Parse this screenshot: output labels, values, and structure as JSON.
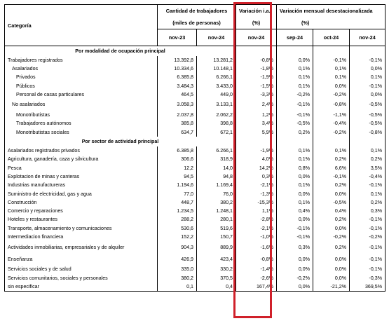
{
  "header": {
    "category_label": "Categoría",
    "group1_title": "Cantidad de trabajadores",
    "group1_sub": "(miles de personas)",
    "group2_title": "Variación i.a.",
    "group2_sub": "(%)",
    "group3_title": "Variación mensual desestacionalizada",
    "group3_sub": "(%)",
    "col1": "nov-23",
    "col2": "nov-24",
    "col3": "nov-24",
    "col4": "sep-24",
    "col5": "oct-24",
    "col6": "nov-24"
  },
  "rows": [
    {
      "type": "section",
      "label": "Por modalidad de ocupación principal"
    },
    {
      "type": "data",
      "label": "Trabajadores registrados",
      "indent": 0,
      "values": [
        "13.392,8",
        "13.281,2",
        "-0,8%",
        "0,0%",
        "-0,1%",
        "-0,1%"
      ]
    },
    {
      "type": "data",
      "label": "Asalariados",
      "indent": 1,
      "values": [
        "10.334,6",
        "10.148,1",
        "-1,8%",
        "0,1%",
        "0,1%",
        "0,0%"
      ]
    },
    {
      "type": "data",
      "label": "Privados",
      "indent": 2,
      "values": [
        "6.385,8",
        "6.266,1",
        "-1,9%",
        "0,1%",
        "0,1%",
        "0,1%"
      ]
    },
    {
      "type": "data",
      "label": "Públicos",
      "indent": 2,
      "values": [
        "3.484,3",
        "3.433,0",
        "-1,5%",
        "0,1%",
        "0,0%",
        "-0,1%"
      ]
    },
    {
      "type": "data",
      "label": "Personal de casas particulares",
      "indent": 2,
      "values": [
        "464,5",
        "449,0",
        "-3,3%",
        "-0,2%",
        "-0,2%",
        "0,0%"
      ]
    },
    {
      "type": "data",
      "label": "No asalariados",
      "indent": 1,
      "values": [
        "3.058,3",
        "3.133,1",
        "2,4%",
        "-0,1%",
        "-0,8%",
        "-0,5%"
      ],
      "tall": true
    },
    {
      "type": "data",
      "label": "Monotributistas",
      "indent": 2,
      "values": [
        "2.037,8",
        "2.062,2",
        "1,2%",
        "-0,1%",
        "-1,1%",
        "-0,5%"
      ]
    },
    {
      "type": "data",
      "label": "Trabajadores autónomos",
      "indent": 2,
      "values": [
        "385,8",
        "398,8",
        "3,4%",
        "-0,5%",
        "-0,4%",
        "-0,5%"
      ]
    },
    {
      "type": "data",
      "label": "Monotributistas sociales",
      "indent": 2,
      "values": [
        "634,7",
        "672,1",
        "5,9%",
        "0,2%",
        "-0,2%",
        "-0,8%"
      ]
    },
    {
      "type": "section",
      "label": "Por sector de actividad principal"
    },
    {
      "type": "data",
      "label": "Asalariados registrados privados",
      "indent": 0,
      "values": [
        "6.385,8",
        "6.266,1",
        "-1,9%",
        "0,1%",
        "0,1%",
        "0,1%"
      ]
    },
    {
      "type": "data",
      "label": "Agricultura, ganadería, caza y silvicultura",
      "indent": 0,
      "values": [
        "306,6",
        "318,9",
        "4,0%",
        "0,1%",
        "0,2%",
        "0,2%"
      ]
    },
    {
      "type": "data",
      "label": "Pesca",
      "indent": 0,
      "values": [
        "12,2",
        "14,0",
        "14,2%",
        "0,8%",
        "6,6%",
        "3,5%"
      ]
    },
    {
      "type": "data",
      "label": "Explotacion de minas y canteras",
      "indent": 0,
      "values": [
        "94,5",
        "94,8",
        "0,3%",
        "0,0%",
        "-0,1%",
        "-0,4%"
      ]
    },
    {
      "type": "data",
      "label": "Industrias manufactureras",
      "indent": 0,
      "values": [
        "1.194,6",
        "1.169,4",
        "-2,1%",
        "0,1%",
        "0,2%",
        "-0,1%"
      ]
    },
    {
      "type": "data",
      "label": "Suministro de electricidad, gas y agua",
      "indent": 0,
      "values": [
        "77,0",
        "76,0",
        "-1,3%",
        "0,0%",
        "0,0%",
        "0,1%"
      ]
    },
    {
      "type": "data",
      "label": "Construcción",
      "indent": 0,
      "values": [
        "448,7",
        "380,2",
        "-15,3%",
        "0,1%",
        "-0,5%",
        "0,2%"
      ]
    },
    {
      "type": "data",
      "label": "Comercio y reparaciones",
      "indent": 0,
      "values": [
        "1.234,5",
        "1.248,1",
        "1,1%",
        "0,4%",
        "0,4%",
        "0,3%"
      ]
    },
    {
      "type": "data",
      "label": "Hoteles y restaurantes",
      "indent": 0,
      "values": [
        "288,2",
        "280,1",
        "-2,8%",
        "0,0%",
        "0,2%",
        "-0,1%"
      ]
    },
    {
      "type": "data",
      "label": "Transporte, almacenamiento y comunicaciones",
      "indent": 0,
      "values": [
        "530,6",
        "519,6",
        "-2,1%",
        "-0,1%",
        "0,0%",
        "-0,1%"
      ]
    },
    {
      "type": "data",
      "label": "Intermediacion financiera",
      "indent": 0,
      "values": [
        "152,2",
        "150,7",
        "-1,0%",
        "-0,1%",
        "-0,2%",
        "-0,2%"
      ]
    },
    {
      "type": "data",
      "label": "Actividades inmobiliarias, empresariales y de alquiler",
      "indent": 0,
      "values": [
        "904,3",
        "889,9",
        "-1,6%",
        "0,3%",
        "0,2%",
        "-0,1%"
      ],
      "tall": true
    },
    {
      "type": "data",
      "label": "Enseñanza",
      "indent": 0,
      "values": [
        "426,9",
        "423,4",
        "-0,8%",
        "0,0%",
        "0,0%",
        "-0,1%"
      ],
      "tall": true
    },
    {
      "type": "data",
      "label": "Servicios sociales y de salud",
      "indent": 0,
      "values": [
        "335,0",
        "330,2",
        "-1,4%",
        "0,0%",
        "0,0%",
        "-0,1%"
      ]
    },
    {
      "type": "data",
      "label": "Servicios comunitarios, sociales y personales",
      "indent": 0,
      "values": [
        "380,2",
        "370,5",
        "-2,6%",
        "-0,2%",
        "0,0%",
        "-0,3%"
      ]
    },
    {
      "type": "data",
      "label": "sin especificar",
      "indent": 0,
      "values": [
        "0,1",
        "0,4",
        "167,4%",
        "0,0%",
        "-21,2%",
        "369,5%"
      ]
    }
  ],
  "colors": {
    "highlight_border": "#d0202a",
    "rule": "#000000"
  }
}
